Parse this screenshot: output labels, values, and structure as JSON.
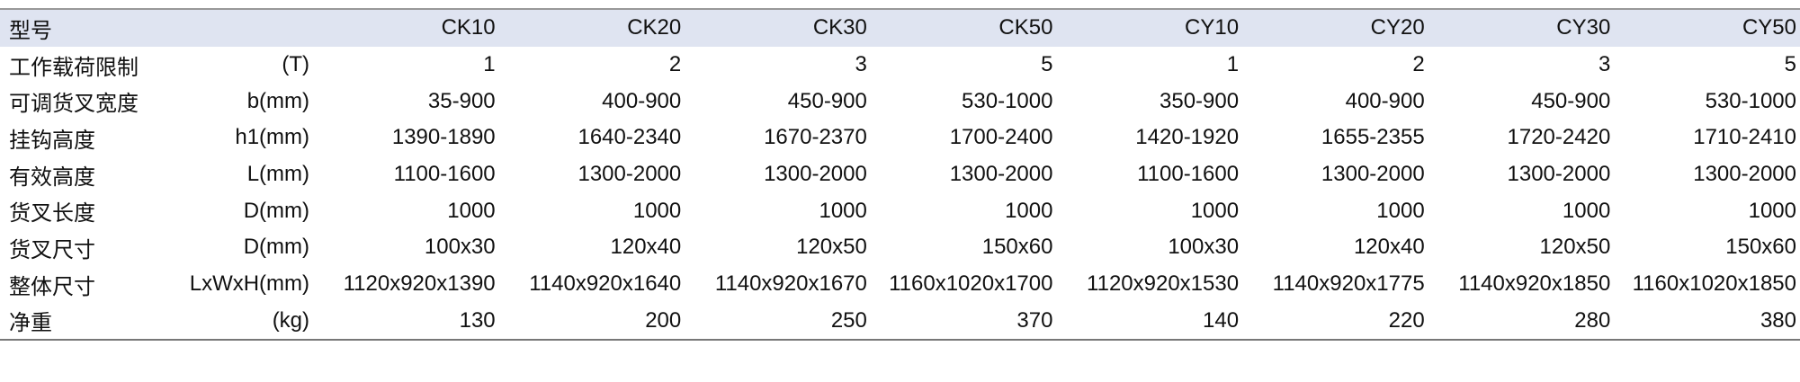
{
  "header": {
    "label": "型号",
    "unit": "",
    "models": [
      "CK10",
      "CK20",
      "CK30",
      "CK50",
      "CY10",
      "CY20",
      "CY30",
      "CY50"
    ]
  },
  "rows": [
    {
      "label": "工作载荷限制",
      "unit": "(T)",
      "values": [
        "1",
        "2",
        "3",
        "5",
        "1",
        "2",
        "3",
        "5"
      ]
    },
    {
      "label": "可调货叉宽度",
      "unit": "b(mm)",
      "values": [
        "35-900",
        "400-900",
        "450-900",
        "530-1000",
        "350-900",
        "400-900",
        "450-900",
        "530-1000"
      ]
    },
    {
      "label": "挂钩高度",
      "unit": "h1(mm)",
      "values": [
        "1390-1890",
        "1640-2340",
        "1670-2370",
        "1700-2400",
        "1420-1920",
        "1655-2355",
        "1720-2420",
        "1710-2410"
      ]
    },
    {
      "label": "有效高度",
      "unit": "L(mm)",
      "values": [
        "1100-1600",
        "1300-2000",
        "1300-2000",
        "1300-2000",
        "1100-1600",
        "1300-2000",
        "1300-2000",
        "1300-2000"
      ]
    },
    {
      "label": "货叉长度",
      "unit": "D(mm)",
      "values": [
        "1000",
        "1000",
        "1000",
        "1000",
        "1000",
        "1000",
        "1000",
        "1000"
      ]
    },
    {
      "label": "货叉尺寸",
      "unit": "D(mm)",
      "values": [
        "100x30",
        "120x40",
        "120x50",
        "150x60",
        "100x30",
        "120x40",
        "120x50",
        "150x60"
      ]
    },
    {
      "label": "整体尺寸",
      "unit": "LxWxH(mm)",
      "values": [
        "1120x920x1390",
        "1140x920x1640",
        "1140x920x1670",
        "1160x1020x1700",
        "1120x920x1530",
        "1140x920x1775",
        "1140x920x1850",
        "1160x1020x1850"
      ]
    },
    {
      "label": "净重",
      "unit": "(kg)",
      "values": [
        "130",
        "200",
        "250",
        "370",
        "140",
        "220",
        "280",
        "380"
      ]
    }
  ]
}
